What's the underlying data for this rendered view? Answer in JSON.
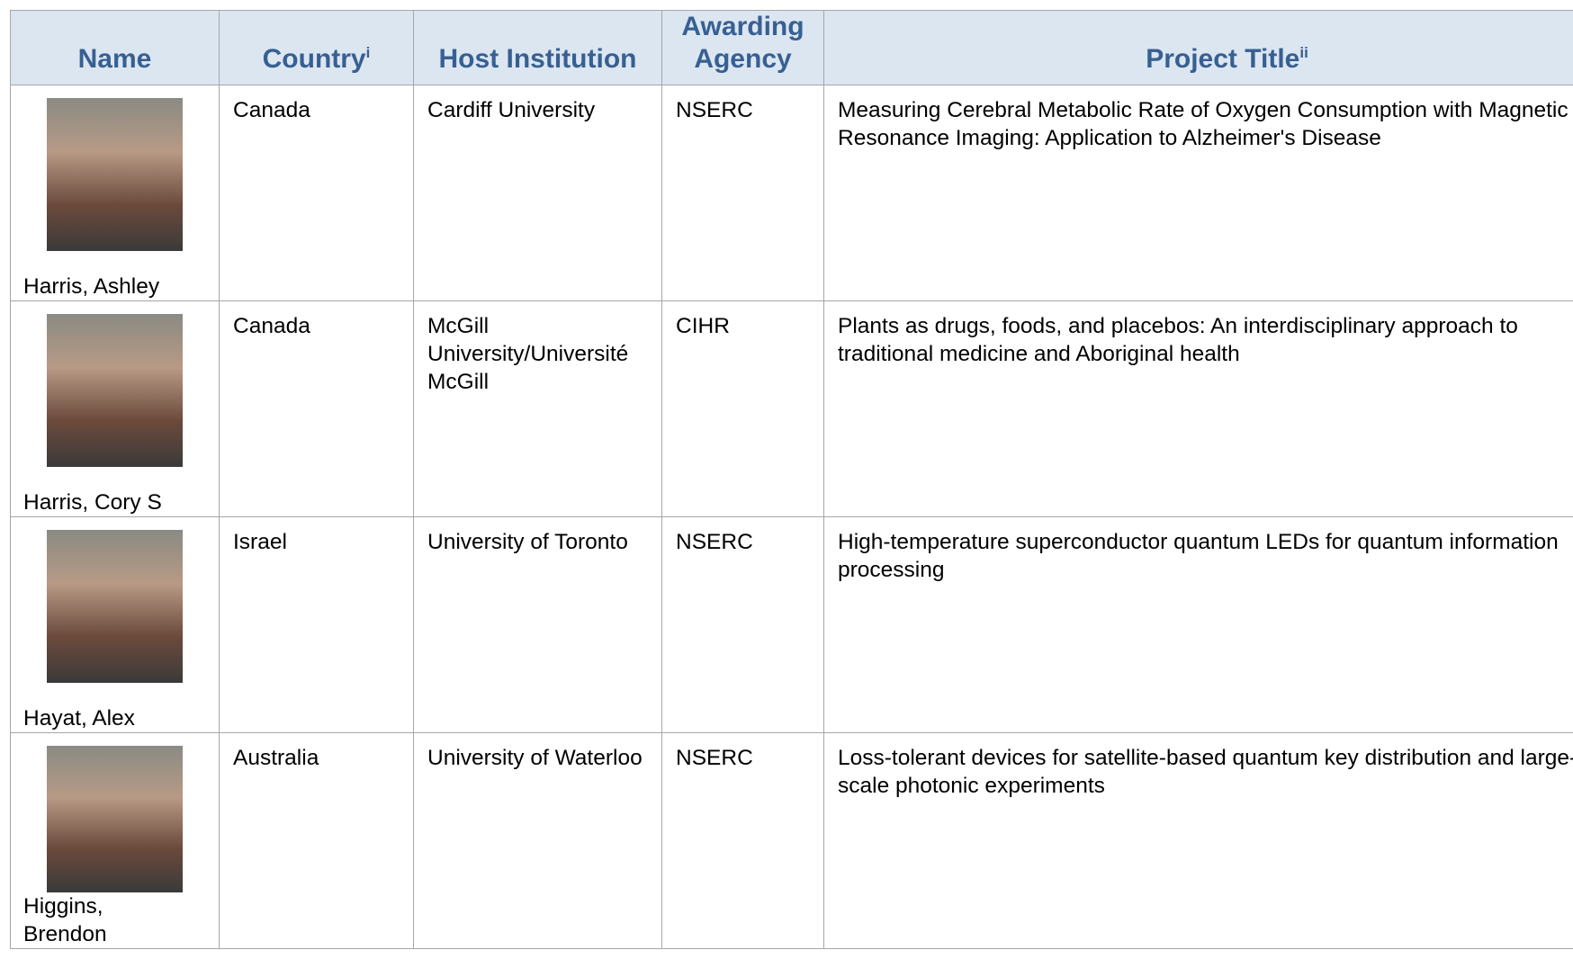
{
  "table": {
    "headers": [
      {
        "text": "Name"
      },
      {
        "text": "Country",
        "note": "i"
      },
      {
        "text": "Host Institution"
      },
      {
        "text": "Awarding Agency"
      },
      {
        "text": "Project Title",
        "note": "ii"
      }
    ],
    "rows": [
      [
        "Harris, Ashley",
        "Canada",
        "Cardiff University",
        "NSERC",
        "Measuring Cerebral Metabolic Rate of Oxygen Consumption with Magnetic Resonance Imaging: Application to Alzheimer's Disease"
      ],
      [
        "Harris, Cory S",
        "Canada",
        "McGill University/Université McGill",
        "CIHR",
        "Plants as drugs, foods, and placebos: An interdisciplinary approach to traditional medicine and Aboriginal health"
      ],
      [
        "Hayat, Alex",
        "Israel",
        "University of Toronto",
        "NSERC",
        "High-temperature superconductor quantum LEDs for quantum information processing"
      ],
      [
        "Higgins, Brendon",
        "Australia",
        "University of Waterloo",
        "NSERC",
        "Loss-tolerant devices for satellite-based quantum key distribution and large-scale photonic experiments"
      ]
    ]
  }
}
